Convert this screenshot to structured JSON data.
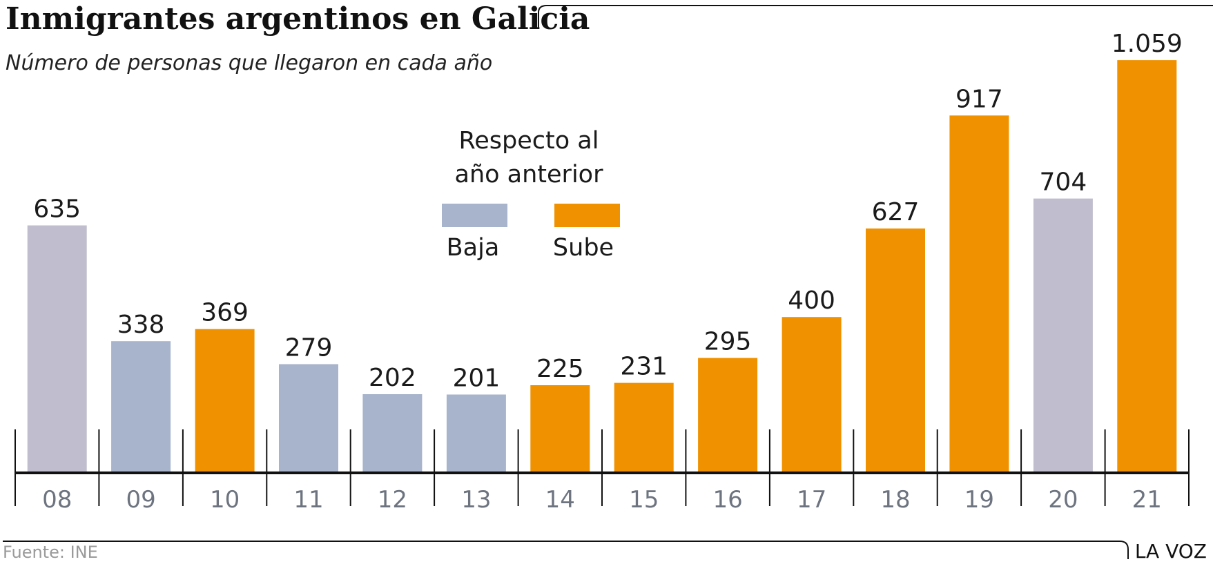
{
  "colors": {
    "baja": "#a8b4cb",
    "sube": "#f09200",
    "neutral": "#c0bece",
    "axis": "#111111",
    "tick_text": "#6d7480"
  },
  "chart_data": {
    "type": "bar",
    "title": "Inmigrantes argentinos en Galicia",
    "subtitle": "Número de personas que llegaron en cada año",
    "categories": [
      "08",
      "09",
      "10",
      "11",
      "12",
      "13",
      "14",
      "15",
      "16",
      "17",
      "18",
      "19",
      "20",
      "21"
    ],
    "values": [
      635,
      338,
      369,
      279,
      202,
      201,
      225,
      231,
      295,
      400,
      627,
      917,
      704,
      1059
    ],
    "value_labels": [
      "635",
      "338",
      "369",
      "279",
      "202",
      "201",
      "225",
      "231",
      "295",
      "400",
      "627",
      "917",
      "704",
      "1.059"
    ],
    "change": [
      "none",
      "baja",
      "sube",
      "baja",
      "baja",
      "baja",
      "sube",
      "sube",
      "sube",
      "sube",
      "sube",
      "sube",
      "none",
      "sube"
    ],
    "ylim": [
      0,
      1100
    ],
    "grid": false,
    "legend": {
      "title_line1": "Respecto al",
      "title_line2": "año anterior",
      "entries": [
        {
          "key": "baja",
          "label": "Baja"
        },
        {
          "key": "sube",
          "label": "Sube"
        }
      ],
      "placement": "top-center"
    }
  },
  "footer": {
    "source": "Fuente:  INE",
    "brand": "LA VOZ"
  }
}
